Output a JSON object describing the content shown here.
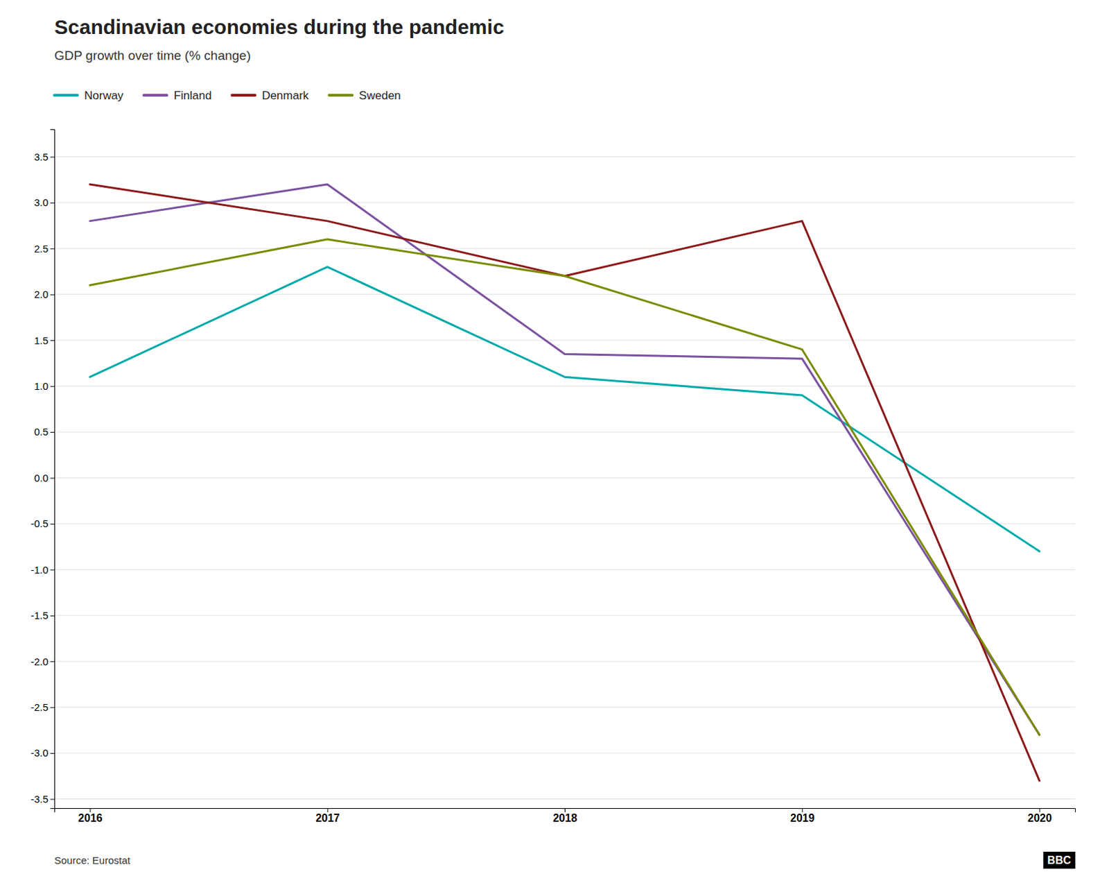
{
  "chart_data": {
    "type": "line",
    "title": "Scandinavian economies during the pandemic",
    "subtitle": "GDP growth over time (% change)",
    "annotations": [
      "Source: Eurostat",
      "BBC"
    ],
    "x": [
      2016,
      2017,
      2018,
      2019,
      2020
    ],
    "series": [
      {
        "name": "Norway",
        "color": "#00AAAA",
        "values": [
          1.1,
          2.3,
          1.1,
          0.9,
          -0.8
        ]
      },
      {
        "name": "Finland",
        "color": "#7B52A0",
        "values": [
          2.8,
          3.2,
          1.35,
          1.3,
          -2.8
        ]
      },
      {
        "name": "Denmark",
        "color": "#8B1A1A",
        "values": [
          3.2,
          2.8,
          2.2,
          2.8,
          -3.3
        ]
      },
      {
        "name": "Sweden",
        "color": "#7B8B00",
        "values": [
          2.1,
          2.6,
          2.2,
          1.4,
          -2.8
        ]
      }
    ],
    "xlim": [
      2015.85,
      2020.15
    ],
    "xticks": [
      2016,
      2017,
      2018,
      2019,
      2020
    ],
    "ylim": [
      -3.6,
      3.8
    ],
    "yticks": [
      -3.5,
      {
        "value": -3,
        "label": "-3.0"
      },
      -2.5,
      {
        "value": -2,
        "label": "-2.0"
      },
      -1.5,
      {
        "value": -1,
        "label": "-1.0"
      },
      -0.5,
      {
        "value": 0,
        "label": "0.0"
      },
      0.5,
      {
        "value": 1,
        "label": "1.0"
      },
      1.5,
      {
        "value": 2,
        "label": "2.0"
      },
      2.5,
      {
        "value": 3,
        "label": "3.0"
      },
      3.5
    ],
    "grid": true,
    "legend": "top-left"
  }
}
